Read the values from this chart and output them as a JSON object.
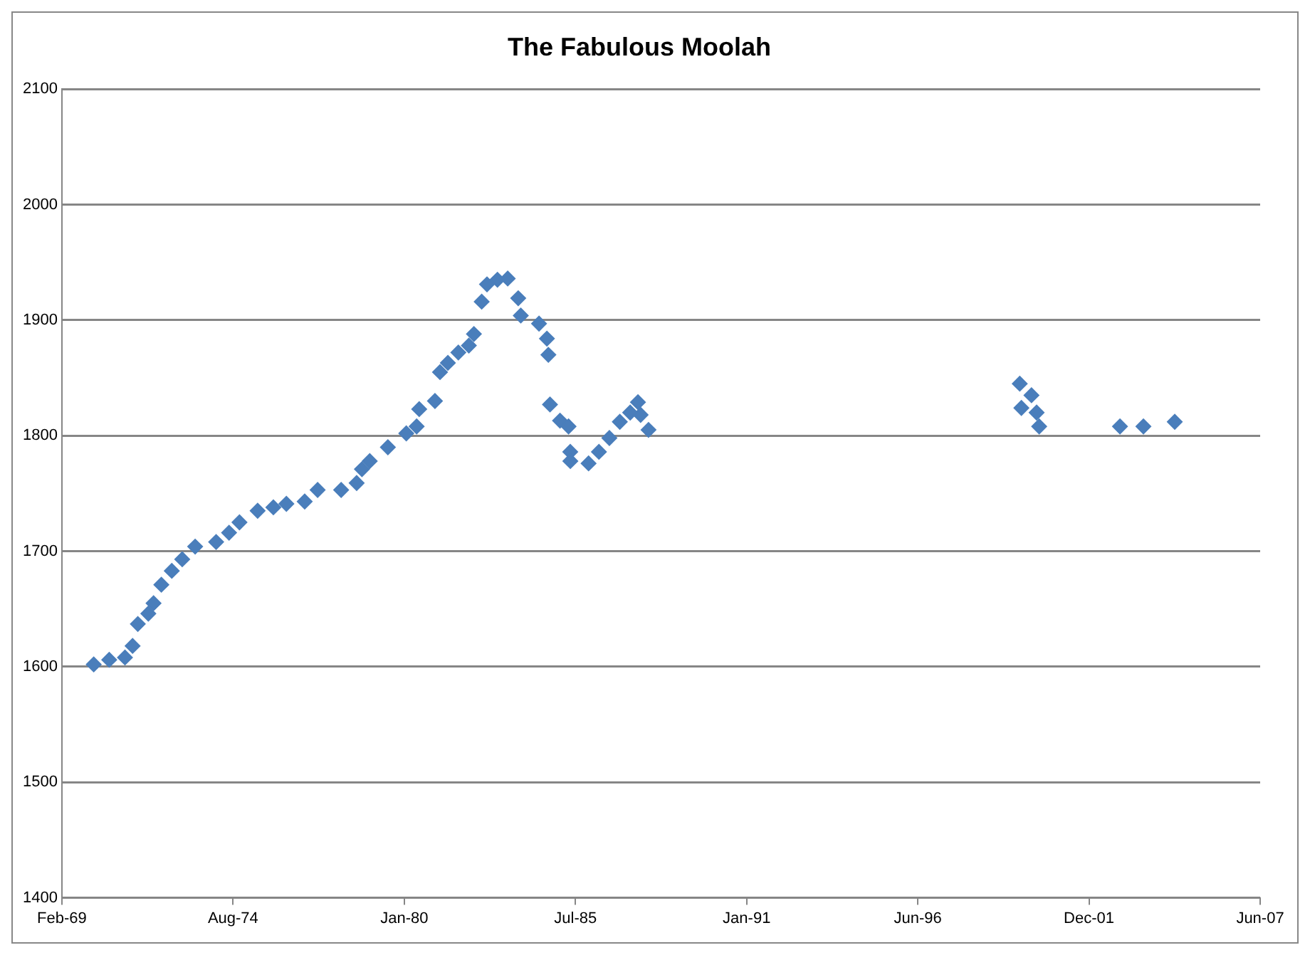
{
  "chart_data": {
    "type": "scatter",
    "title": "The Fabulous Moolah",
    "marker": "diamond",
    "grid": "y",
    "legend": false,
    "x": [
      "1970-02",
      "1970-08",
      "1971-02",
      "1971-05",
      "1971-07",
      "1971-11",
      "1972-01",
      "1972-04",
      "1972-08",
      "1972-12",
      "1973-05",
      "1974-01",
      "1974-06",
      "1974-10",
      "1975-05",
      "1975-11",
      "1976-04",
      "1976-11",
      "1977-04",
      "1978-01",
      "1978-07",
      "1978-09",
      "1978-12",
      "1979-07",
      "1980-02",
      "1980-06",
      "1980-07",
      "1981-01",
      "1981-03",
      "1981-06",
      "1981-10",
      "1982-02",
      "1982-04",
      "1982-07",
      "1982-09",
      "1983-01",
      "1983-05",
      "1983-09",
      "1983-10",
      "1984-05",
      "1984-08-15",
      "1984-09-01",
      "1984-09-20",
      "1985-01",
      "1985-04-25",
      "1985-05-15",
      "1985-05-16",
      "1985-12",
      "1986-04",
      "1986-08",
      "1986-12",
      "1987-04",
      "1987-07",
      "1987-08",
      "1987-11",
      "1999-10-01",
      "1999-10-20",
      "2000-02",
      "2000-04",
      "2000-05",
      "2002-12",
      "2003-09",
      "2004-09"
    ],
    "series": [
      {
        "color": "#4a7ebb",
        "values": [
          1602,
          1606,
          1608,
          1618,
          1637,
          1646,
          1655,
          1671,
          1683,
          1693,
          1704,
          1708,
          1716,
          1725,
          1735,
          1738,
          1741,
          1743,
          1753,
          1753,
          1759,
          1771,
          1778,
          1790,
          1802,
          1808,
          1823,
          1830,
          1855,
          1863,
          1872,
          1878,
          1888,
          1916,
          1931,
          1935,
          1936,
          1919,
          1904,
          1897,
          1884,
          1870,
          1827,
          1813,
          1808,
          1786,
          1778,
          1776,
          1786,
          1798,
          1812,
          1820,
          1829,
          1818,
          1805,
          1845,
          1824,
          1835,
          1820,
          1808,
          1808,
          1808,
          1812
        ]
      }
    ],
    "xlim": [
      "1969-02-08",
      "2007-06-10"
    ],
    "xticks": [
      {
        "value": "1969-02-08",
        "label": "Feb-69"
      },
      {
        "value": "1974-08-01",
        "label": "Aug-74"
      },
      {
        "value": "1980-01-23",
        "label": "Jan-80"
      },
      {
        "value": "1985-07-15",
        "label": "Jul-85"
      },
      {
        "value": "1991-01-05",
        "label": "Jan-91"
      },
      {
        "value": "1996-06-27",
        "label": "Jun-96"
      },
      {
        "value": "2001-12-18",
        "label": "Dec-01"
      },
      {
        "value": "2007-06-10",
        "label": "Jun-07"
      }
    ],
    "ylim": [
      1400,
      2100
    ],
    "yticks": [
      1400,
      1500,
      1600,
      1700,
      1800,
      1900,
      2000,
      2100
    ]
  }
}
